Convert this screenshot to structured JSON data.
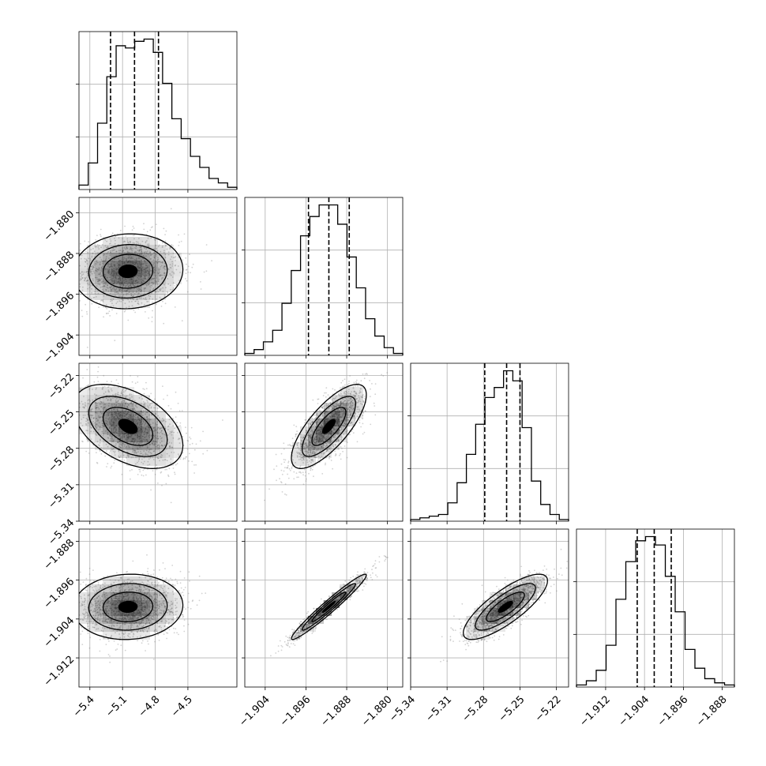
{
  "chart_data": {
    "type": "corner",
    "grid": true,
    "parameters": [
      {
        "index": 0,
        "range": [
          -5.5,
          -4.05
        ],
        "ticks": [
          -5.4,
          -5.1,
          -4.8,
          -4.5
        ],
        "tick_labels": [
          "−5.4",
          "−5.1",
          "−4.8",
          "−4.5"
        ],
        "quantiles": [
          -5.21,
          -4.99,
          -4.77
        ]
      },
      {
        "index": 1,
        "range": [
          -1.908,
          -1.877
        ],
        "ticks": [
          -1.904,
          -1.896,
          -1.888,
          -1.88
        ],
        "tick_labels": [
          "−1.904",
          "−1.896",
          "−1.888",
          "−1.880"
        ],
        "quantiles": [
          -1.8955,
          -1.8915,
          -1.8875
        ]
      },
      {
        "index": 2,
        "range": [
          -5.34,
          -5.21
        ],
        "ticks": [
          -5.34,
          -5.31,
          -5.28,
          -5.25,
          -5.22
        ],
        "tick_labels": [
          "−5.34",
          "−5.31",
          "−5.28",
          "−5.25",
          "−5.22"
        ],
        "quantiles": [
          -5.279,
          -5.261,
          -5.25
        ]
      },
      {
        "index": 3,
        "range": [
          -1.918,
          -1.8855
        ],
        "ticks": [
          -1.912,
          -1.904,
          -1.896,
          -1.888
        ],
        "tick_labels": [
          "−1.912",
          "−1.904",
          "−1.896",
          "−1.888"
        ],
        "quantiles": [
          -1.9055,
          -1.902,
          -1.8985
        ]
      }
    ],
    "histograms": [
      {
        "param": 0,
        "counts": [
          2,
          12,
          30,
          51,
          65,
          64,
          67,
          68,
          62,
          48,
          32,
          23,
          15,
          10,
          5,
          3,
          1
        ]
      },
      {
        "param": 1,
        "counts": [
          1,
          3,
          7,
          13,
          27,
          44,
          62,
          72,
          78,
          78,
          68,
          51,
          35,
          19,
          10,
          4,
          1
        ]
      },
      {
        "param": 2,
        "counts": [
          1,
          2,
          3,
          4,
          11,
          23,
          40,
          58,
          74,
          80,
          90,
          84,
          56,
          24,
          10,
          4,
          1
        ]
      },
      {
        "param": 3,
        "counts": [
          1,
          3,
          8,
          20,
          42,
          60,
          70,
          72,
          68,
          53,
          36,
          18,
          9,
          4,
          2,
          1
        ]
      }
    ],
    "pairs": [
      {
        "x": 0,
        "y": 1,
        "mean": [
          -5.05,
          -1.8915
        ],
        "sd": [
          0.24,
          0.0035
        ],
        "rho": 0.05
      },
      {
        "x": 0,
        "y": 2,
        "mean": [
          -5.05,
          -5.262
        ],
        "sd": [
          0.24,
          0.0165
        ],
        "rho": -0.45
      },
      {
        "x": 1,
        "y": 2,
        "mean": [
          -1.8915,
          -5.262
        ],
        "sd": [
          0.0035,
          0.0165
        ],
        "rho": 0.75
      },
      {
        "x": 0,
        "y": 3,
        "mean": [
          -5.05,
          -1.9015
        ],
        "sd": [
          0.24,
          0.0032
        ],
        "rho": 0.05
      },
      {
        "x": 1,
        "y": 3,
        "mean": [
          -1.8915,
          -1.9015
        ],
        "sd": [
          0.0035,
          0.0032
        ],
        "rho": 0.97
      },
      {
        "x": 2,
        "y": 3,
        "mean": [
          -5.262,
          -1.9015
        ],
        "sd": [
          0.0165,
          0.0032
        ],
        "rho": 0.8
      }
    ]
  },
  "colors": {
    "line": "#000000",
    "grid": "#b0b0b0",
    "points": "#7f7f7f",
    "density": "#000000"
  }
}
